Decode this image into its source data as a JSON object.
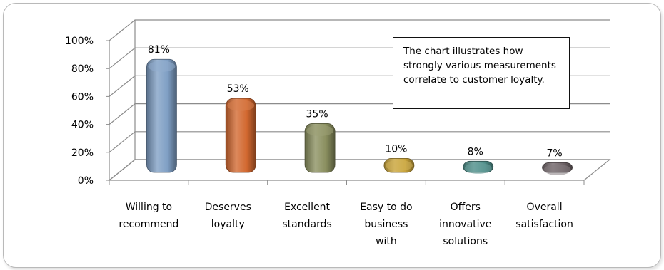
{
  "chart_data": {
    "type": "bar",
    "categories": [
      [
        "Willing to",
        "recommend"
      ],
      [
        "Deserves",
        "loyalty"
      ],
      [
        "Excellent",
        "standards"
      ],
      [
        "Easy to do",
        "business",
        "with"
      ],
      [
        "Offers",
        "innovative",
        "solutions"
      ],
      [
        "Overall",
        "satisfaction"
      ]
    ],
    "values": [
      81,
      53,
      35,
      10,
      8,
      7
    ],
    "value_labels": [
      "81%",
      "53%",
      "35%",
      "10%",
      "8%",
      "7%"
    ],
    "ylim": [
      0,
      100
    ],
    "yticks": [
      "0%",
      "20%",
      "40%",
      "60%",
      "80%",
      "100%"
    ],
    "grid": true,
    "three_d": true,
    "annotation": "The chart illustrates how strongly various measurements correlate to customer loyalty.",
    "colors": [
      "#7f9fc4",
      "#d2682f",
      "#8a8f5f",
      "#c9a43a",
      "#4f8f8a",
      "#6f6468"
    ],
    "title": "",
    "xlabel": "",
    "ylabel": ""
  }
}
